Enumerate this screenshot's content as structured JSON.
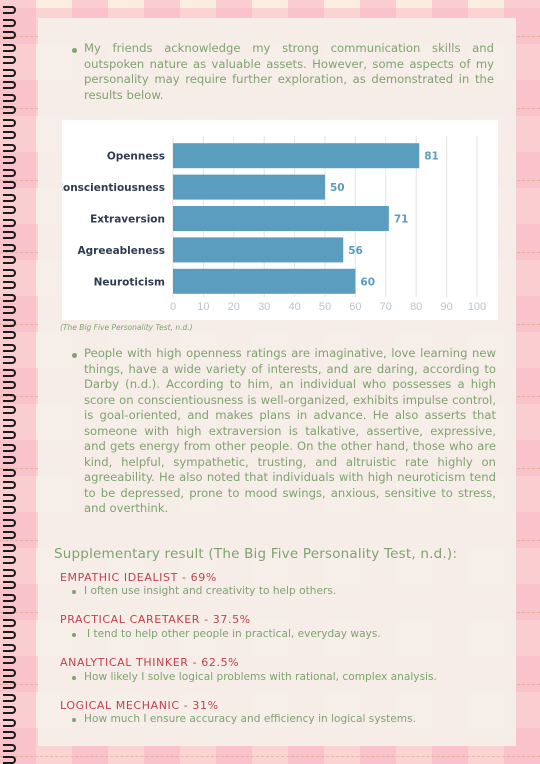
{
  "intro_paragraph": "My friends acknowledge my strong communication skills and outspoken nature as valuable assets. However, some aspects of my personality may require further exploration, as demonstrated in the results below.",
  "chart_data": {
    "type": "bar",
    "orientation": "horizontal",
    "categories": [
      "Openness",
      "Conscientiousness",
      "Extraversion",
      "Agreeableness",
      "Neuroticism"
    ],
    "values": [
      81,
      50,
      71,
      56,
      60
    ],
    "xlim": [
      0,
      100
    ],
    "xticks": [
      0,
      10,
      20,
      30,
      40,
      50,
      60,
      70,
      80,
      90,
      100
    ],
    "grid": true,
    "bar_color": "#5b9dbe",
    "label_color": "#2f3b52",
    "value_label_color": "#5b9dbe"
  },
  "chart_caption": "(The Big Five Personality Test, n.d.)",
  "analysis_paragraph": "People with high openness ratings are imaginative, love learning new things, have a wide variety of interests, and are daring, according to Darby (n.d.). According to him, an individual who possesses a high score on conscientiousness is well-organized, exhibits impulse control, is goal-oriented, and makes plans in advance. He also asserts that someone with high extraversion is talkative, assertive, expressive, and gets energy from other people. On the other hand, those who are kind, helpful, sympathetic, trusting, and altruistic rate highly on agreeability. He also noted that individuals with high neuroticism tend to be depressed, prone to mood swings, anxious, sensitive to stress, and overthink.",
  "supplementary_heading": "Supplementary result (The Big Five Personality Test, n.d.):",
  "results": [
    {
      "title": "EMPATHIC IDEALIST - 69%",
      "desc": "I often use insight and creativity to help others."
    },
    {
      "title": "PRACTICAL CARETAKER - 37.5%",
      "desc": "I tend to help other people in practical, everyday ways."
    },
    {
      "title": "ANALYTICAL THINKER - 62.5%",
      "desc": "How likely I solve logical problems with rational, complex analysis."
    },
    {
      "title": "LOGICAL MECHANIC - 31%",
      "desc": "How much I ensure accuracy and efficiency in logical systems."
    }
  ],
  "colors": {
    "text_green": "#7fa36f",
    "title_red": "#c0424e",
    "pink_check": "#fab4c3",
    "cream": "#fbeee0"
  }
}
